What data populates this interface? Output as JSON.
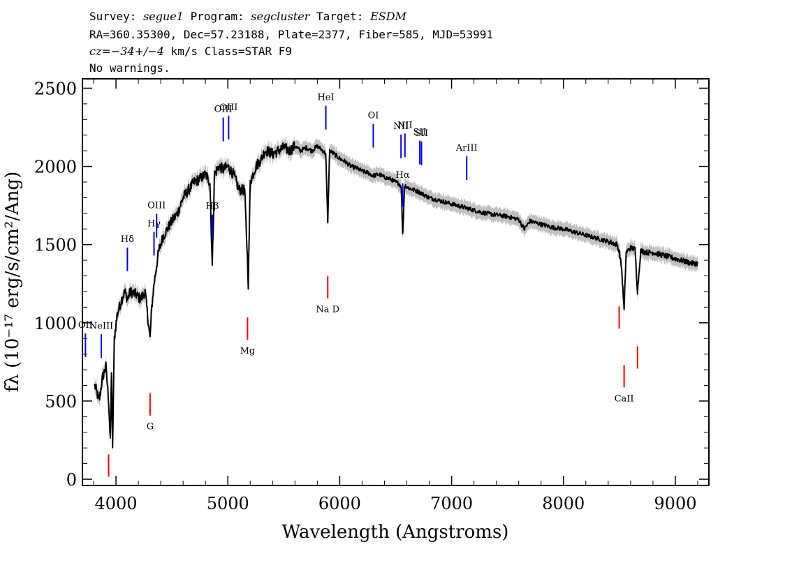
{
  "header": {
    "line1": {
      "survey_label": "Survey:",
      "survey": "segue1",
      "program_label": "Program:",
      "program": "segcluster",
      "target_label": "Target:",
      "target": "ESDM"
    },
    "line2": "RA=360.35300, Dec=57.23188, Plate=2377, Fiber=585, MJD=53991",
    "line3": {
      "cz": "cz=−34+/−4",
      "rest": " km/s Class=STAR F9"
    },
    "line4": "No warnings."
  },
  "chart_data": {
    "type": "line",
    "title": "",
    "xlabel": "Wavelength (Angstroms)",
    "ylabel": "fλ (10⁻¹⁷ erg/s/cm²/Ang)",
    "xlim": [
      3700,
      9300
    ],
    "ylim": [
      -40,
      2560
    ],
    "xticks": [
      4000,
      5000,
      6000,
      7000,
      8000,
      9000
    ],
    "yticks": [
      0,
      500,
      1000,
      1500,
      2000,
      2500
    ],
    "series": [
      {
        "name": "flux",
        "color": "#000000",
        "x": [
          3810,
          3850,
          3880,
          3910,
          3935,
          3950,
          3960,
          3970,
          3985,
          4010,
          4050,
          4080,
          4102,
          4130,
          4180,
          4220,
          4260,
          4290,
          4305,
          4320,
          4340,
          4380,
          4420,
          4460,
          4500,
          4550,
          4600,
          4650,
          4700,
          4750,
          4800,
          4840,
          4861,
          4880,
          4920,
          4960,
          5000,
          5050,
          5100,
          5150,
          5170,
          5183,
          5200,
          5250,
          5300,
          5330,
          5350,
          5400,
          5450,
          5500,
          5550,
          5600,
          5650,
          5700,
          5750,
          5800,
          5850,
          5875,
          5893,
          5910,
          5950,
          6000,
          6050,
          6100,
          6150,
          6200,
          6250,
          6300,
          6350,
          6400,
          6450,
          6500,
          6530,
          6550,
          6563,
          6580,
          6620,
          6700,
          6800,
          6900,
          7000,
          7100,
          7200,
          7300,
          7400,
          7500,
          7600,
          7650,
          7700,
          7800,
          7900,
          8000,
          8100,
          8200,
          8300,
          8400,
          8480,
          8500,
          8520,
          8542,
          8560,
          8600,
          8640,
          8662,
          8690,
          8750,
          8800,
          8850,
          8900,
          8950,
          9000,
          9050,
          9100,
          9150,
          9200
        ],
        "y": [
          600,
          500,
          650,
          720,
          500,
          230,
          700,
          180,
          900,
          1050,
          1150,
          1200,
          1150,
          1200,
          1180,
          1150,
          1200,
          1000,
          900,
          1100,
          1250,
          1450,
          1550,
          1600,
          1650,
          1700,
          1800,
          1850,
          1900,
          1920,
          1950,
          1900,
          1360,
          1950,
          2000,
          1980,
          2000,
          1950,
          1850,
          1850,
          1500,
          1250,
          1900,
          2000,
          2050,
          2100,
          2100,
          2080,
          2100,
          2120,
          2100,
          2130,
          2100,
          2120,
          2100,
          2130,
          2100,
          2080,
          1650,
          2100,
          2080,
          2050,
          2030,
          2000,
          1990,
          1970,
          1960,
          1940,
          1950,
          1930,
          1920,
          1900,
          1890,
          1870,
          1560,
          1880,
          1860,
          1840,
          1800,
          1780,
          1760,
          1740,
          1720,
          1700,
          1690,
          1680,
          1660,
          1600,
          1650,
          1630,
          1610,
          1600,
          1580,
          1560,
          1540,
          1520,
          1500,
          1450,
          1350,
          1080,
          1450,
          1480,
          1470,
          1200,
          1460,
          1450,
          1450,
          1440,
          1430,
          1420,
          1410,
          1400,
          1390,
          1380,
          1380
        ]
      }
    ],
    "uncertainty_band": {
      "color": "#c0c0c0",
      "sigma": 45
    },
    "emission_lines": [
      {
        "label": "OII",
        "wavelength": 3727
      },
      {
        "label": "NeIII",
        "wavelength": 3869
      },
      {
        "label": "Hδ",
        "wavelength": 4102
      },
      {
        "label": "Hγ",
        "wavelength": 4340
      },
      {
        "label": "OIII",
        "wavelength": 4363
      },
      {
        "label": "Hβ",
        "wavelength": 4861
      },
      {
        "label": "OIII",
        "wavelength": 4959
      },
      {
        "label": "OIII",
        "wavelength": 5007
      },
      {
        "label": "HeI",
        "wavelength": 5876
      },
      {
        "label": "OI",
        "wavelength": 6300
      },
      {
        "label": "NII",
        "wavelength": 6548
      },
      {
        "label": "Hα",
        "wavelength": 6563
      },
      {
        "label": "NII",
        "wavelength": 6583
      },
      {
        "label": "SII",
        "wavelength": 6716
      },
      {
        "label": "SII",
        "wavelength": 6731
      },
      {
        "label": "ArIII",
        "wavelength": 7135
      }
    ],
    "absorption_lines": [
      {
        "label": "",
        "wavelength": 3934
      },
      {
        "label": "",
        "wavelength": 3969
      },
      {
        "label": "G",
        "wavelength": 4305
      },
      {
        "label": "Mg",
        "wavelength": 5176
      },
      {
        "label": "Na D",
        "wavelength": 5893
      },
      {
        "label": "",
        "wavelength": 8498
      },
      {
        "label": "CaII",
        "wavelength": 8542
      },
      {
        "label": "",
        "wavelength": 8662
      }
    ]
  }
}
